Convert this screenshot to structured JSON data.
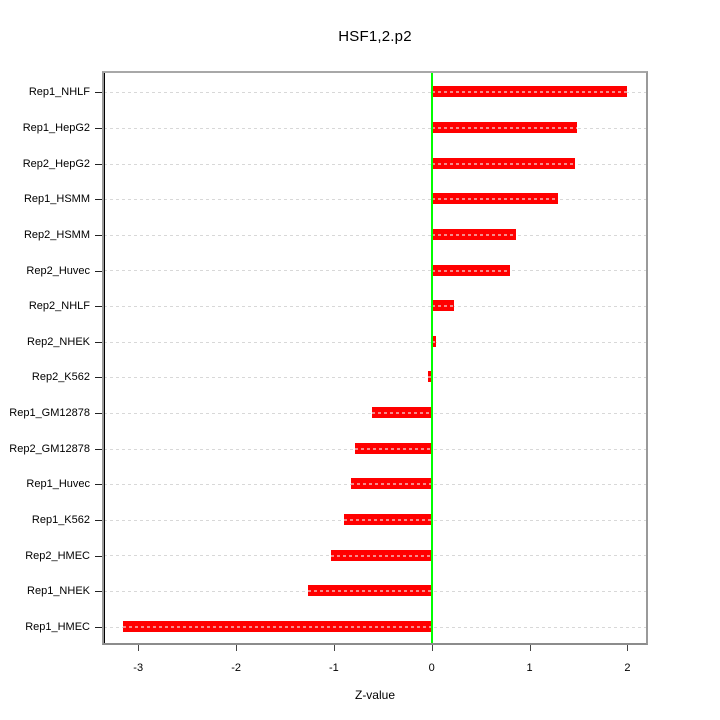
{
  "title": "HSF1,2.p2",
  "chart_data": {
    "type": "bar",
    "orientation": "horizontal",
    "title": "HSF1,2.p2",
    "xlabel": "Z-value",
    "ylabel": "",
    "categories": [
      "Rep1_NHLF",
      "Rep1_HepG2",
      "Rep2_HepG2",
      "Rep1_HSMM",
      "Rep2_HSMM",
      "Rep2_Huvec",
      "Rep2_NHLF",
      "Rep2_NHEK",
      "Rep2_K562",
      "Rep1_GM12878",
      "Rep2_GM12878",
      "Rep1_Huvec",
      "Rep1_K562",
      "Rep2_HMEC",
      "Rep1_NHEK",
      "Rep1_HMEC"
    ],
    "values": [
      2.0,
      1.49,
      1.47,
      1.29,
      0.86,
      0.8,
      0.23,
      0.04,
      -0.04,
      -0.61,
      -0.78,
      -0.83,
      -0.9,
      -1.03,
      -1.27,
      -3.16
    ],
    "x_ticks": [
      -3,
      -2,
      -1,
      0,
      1,
      2
    ],
    "xlim": [
      -3.35,
      2.19
    ],
    "zero_line_x": 0,
    "grid": "dotted horizontal line at each category",
    "legend": "none",
    "colors": {
      "bar": "#ff0000",
      "bar_grid_overlay": "#f58a8a",
      "zero_line": "#00ff00",
      "grid_line": "#d8d8d8",
      "box_border": "#9a9a9a",
      "axis_line": "#000000",
      "text": "#000000",
      "background": "#ffffff"
    }
  }
}
